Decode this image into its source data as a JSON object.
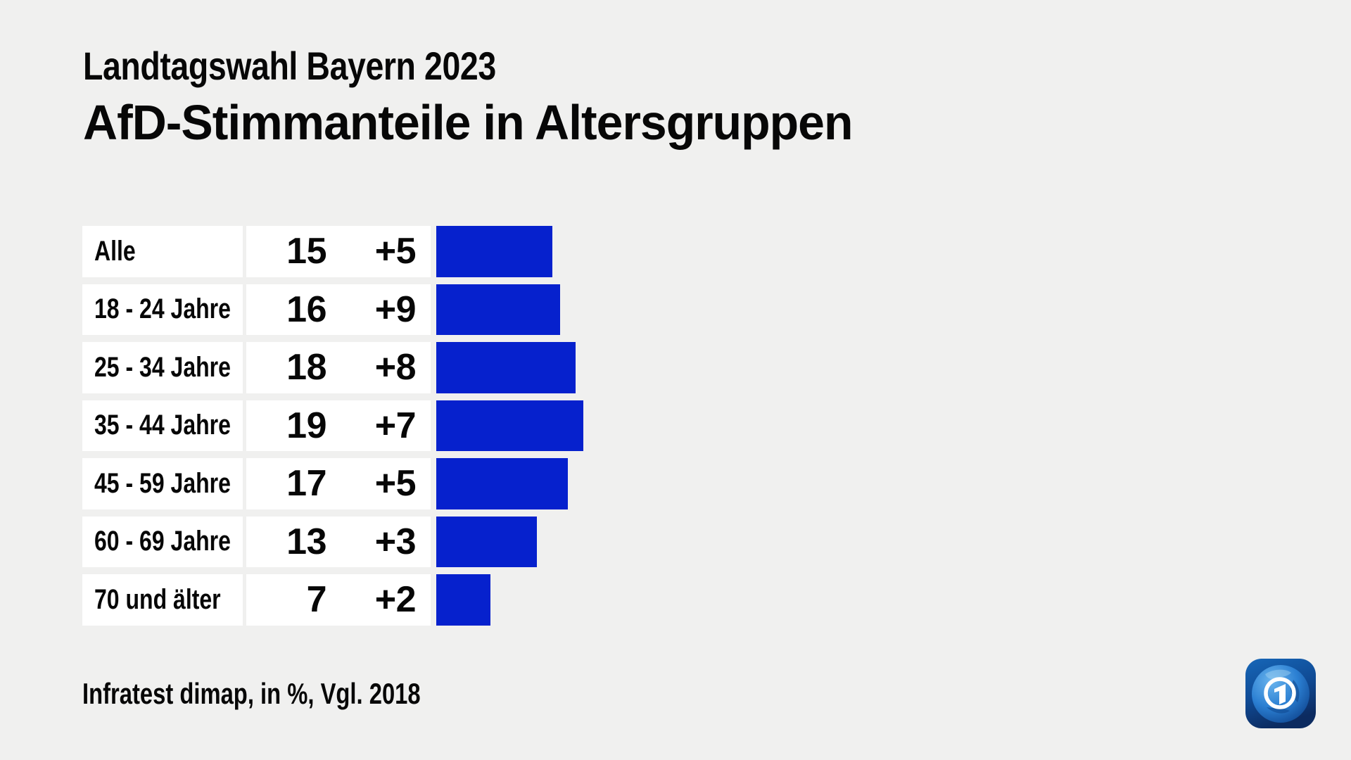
{
  "page": {
    "background_color": "#f0f0ef",
    "text_color": "#070707"
  },
  "chart_data": {
    "type": "bar",
    "orientation": "horizontal",
    "subtitle": "Landtagswahl Bayern 2023",
    "title": "AfD-Stimmanteile in Altersgruppen",
    "unit": "%",
    "source_note": "Infratest dimap, in %, Vgl. 2018",
    "categories": [
      "Alle",
      "18 - 24 Jahre",
      "25 - 34 Jahre",
      "35 - 44 Jahre",
      "45 - 59 Jahre",
      "60 - 69 Jahre",
      "70 und älter"
    ],
    "series": [
      {
        "name": "value",
        "values": [
          15,
          16,
          18,
          19,
          17,
          13,
          7
        ]
      },
      {
        "name": "change_vs_2018",
        "values": [
          "+5",
          "+9",
          "+8",
          "+7",
          "+5",
          "+3",
          "+2"
        ]
      }
    ],
    "xlim": [
      0,
      19
    ],
    "bar_color": "#0621cd",
    "row_background": "#ffffff",
    "grid": false,
    "legend": "none"
  },
  "logo": {
    "icon": "ard-one-globe-logo"
  }
}
